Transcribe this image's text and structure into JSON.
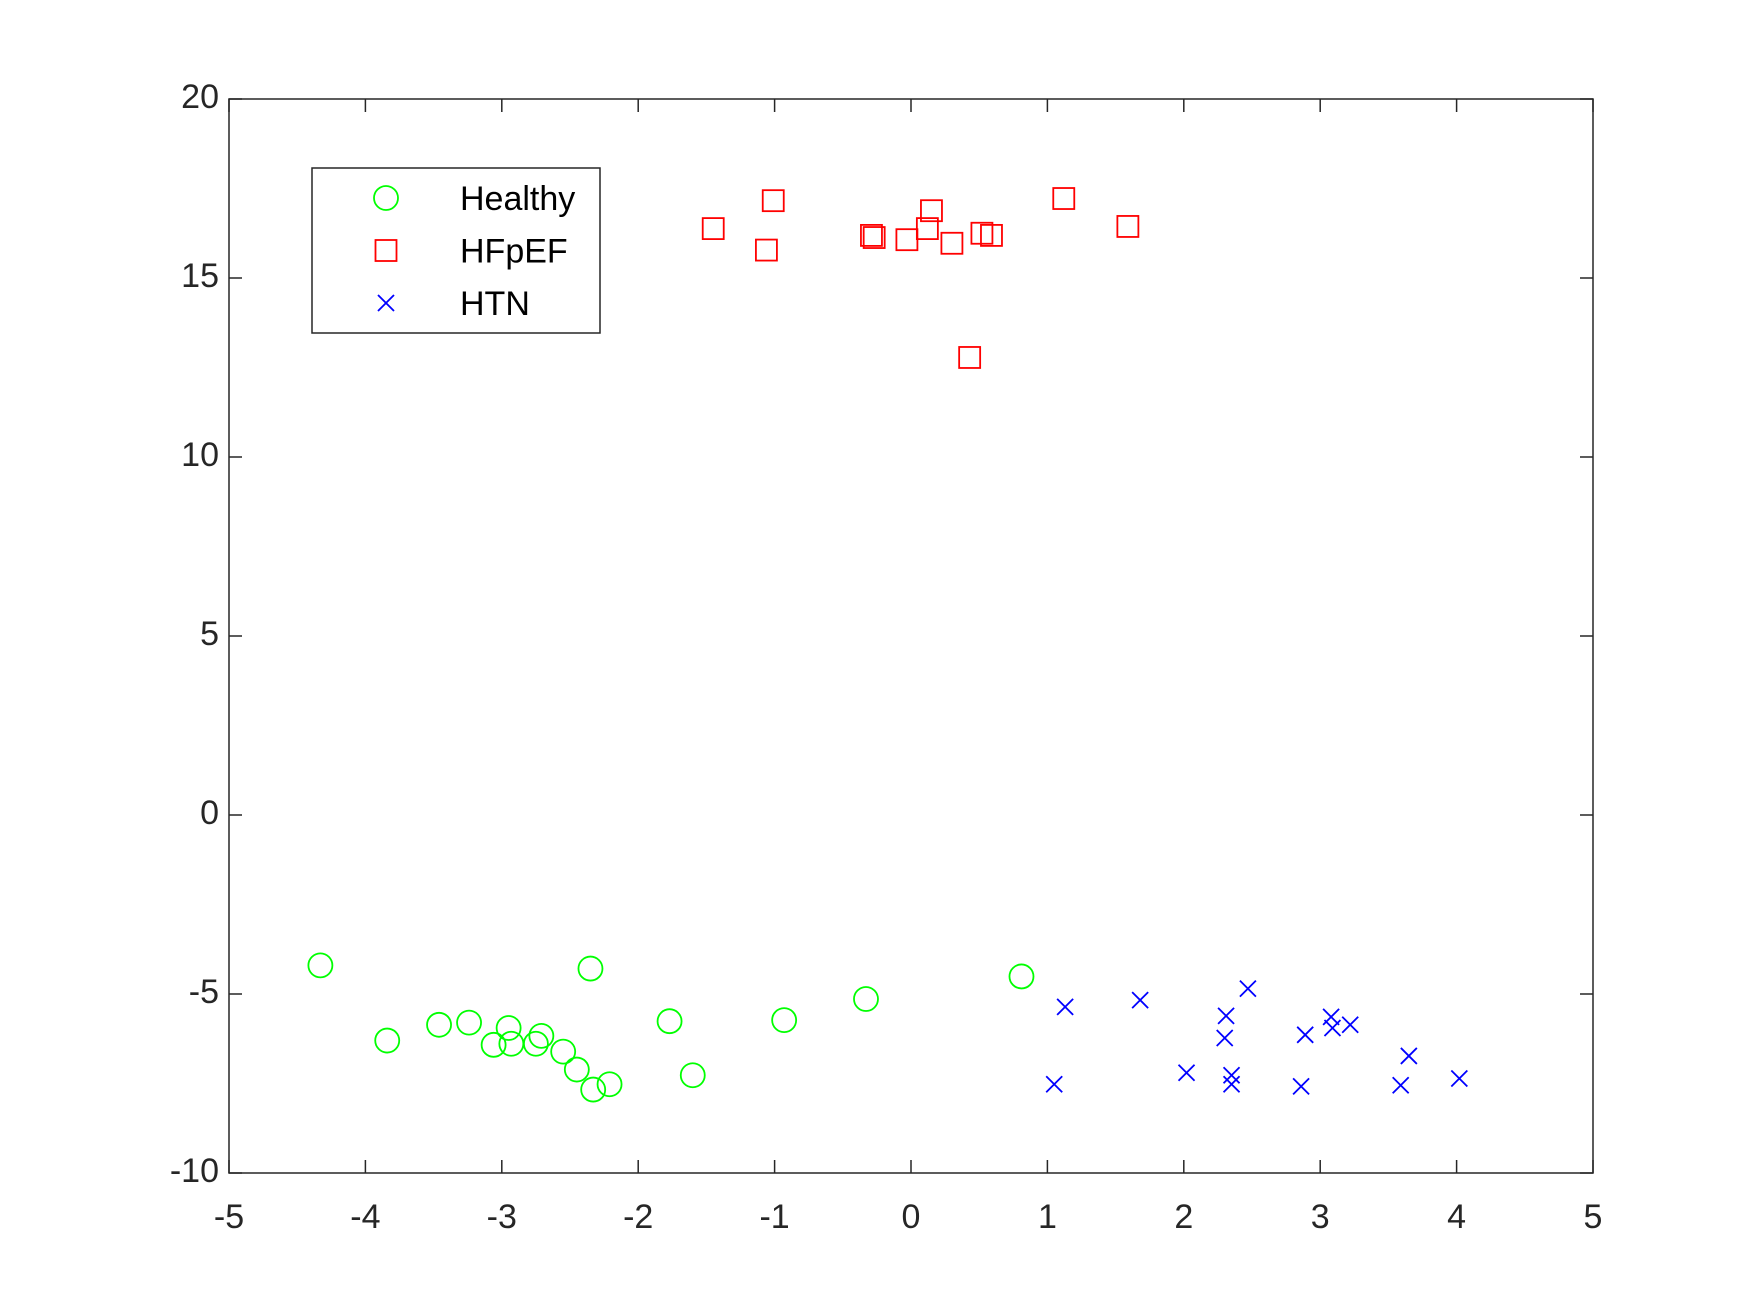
{
  "chart_data": {
    "type": "scatter",
    "xlim": [
      -5,
      5
    ],
    "xticks": [
      -5,
      -4,
      -3,
      -2,
      -1,
      0,
      1,
      2,
      3,
      4,
      5
    ],
    "ylim": [
      -10,
      20
    ],
    "yticks": [
      -10,
      -5,
      0,
      5,
      10,
      15,
      20
    ],
    "grid": false,
    "legend": "northwest",
    "series": [
      {
        "name": "Healthy",
        "color": "#00ff00",
        "marker": "circle",
        "x": [
          -4.33,
          -3.84,
          -3.46,
          -3.24,
          -3.06,
          -2.95,
          -2.93,
          -2.75,
          -2.71,
          -2.55,
          -2.45,
          -2.35,
          -2.33,
          -2.21,
          -1.77,
          -1.6,
          -0.93,
          -0.33,
          0.81
        ],
        "y": [
          -4.2,
          -6.3,
          -5.86,
          -5.8,
          -6.42,
          -5.95,
          -6.39,
          -6.39,
          -6.17,
          -6.61,
          -7.11,
          -4.29,
          -7.67,
          -7.52,
          -5.76,
          -7.27,
          -5.73,
          -5.14,
          -4.51
        ]
      },
      {
        "name": "HFpEF",
        "color": "#ff0000",
        "marker": "square",
        "x": [
          -1.45,
          -1.01,
          -1.06,
          -0.29,
          -0.27,
          -0.03,
          0.12,
          0.15,
          0.3,
          0.52,
          0.59,
          0.43,
          1.12,
          1.59
        ],
        "y": [
          16.38,
          17.16,
          15.78,
          16.19,
          16.13,
          16.07,
          16.38,
          16.88,
          15.97,
          16.25,
          16.19,
          12.78,
          17.22,
          16.44
        ]
      },
      {
        "name": "HTN",
        "color": "#0000ff",
        "marker": "x",
        "x": [
          1.05,
          1.13,
          1.68,
          2.02,
          2.31,
          2.3,
          2.35,
          2.35,
          2.47,
          2.86,
          2.89,
          3.08,
          3.09,
          3.22,
          3.59,
          3.65,
          4.02
        ],
        "y": [
          -7.52,
          -5.36,
          -5.17,
          -7.2,
          -5.61,
          -6.23,
          -7.27,
          -7.52,
          -4.85,
          -7.58,
          -6.14,
          -5.64,
          -5.95,
          -5.86,
          -7.55,
          -6.73,
          -7.36
        ]
      }
    ]
  }
}
